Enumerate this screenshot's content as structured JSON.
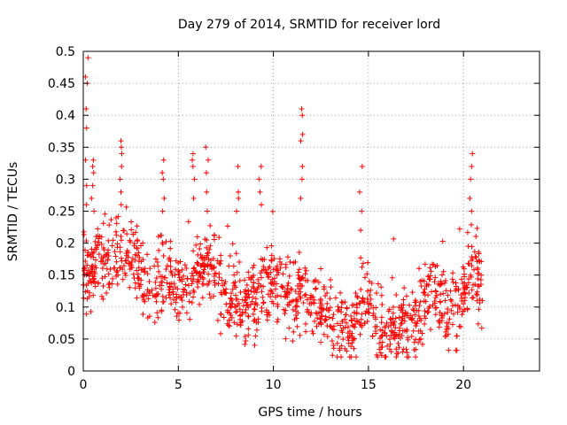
{
  "chart_data": {
    "type": "scatter",
    "title": "Day 279 of 2014, SRMTID for receiver lord",
    "xlabel": "GPS time / hours",
    "ylabel": "SRMTID / TECUs",
    "xlim": [
      0,
      24
    ],
    "ylim": [
      0,
      0.5
    ],
    "xticks": [
      0,
      5,
      10,
      15,
      20
    ],
    "yticks": [
      0,
      0.05,
      0.1,
      0.15,
      0.2,
      0.25,
      0.3,
      0.35,
      0.4,
      0.45,
      0.5
    ],
    "xtick_labels": [
      "0",
      "5",
      "10",
      "15",
      "20"
    ],
    "ytick_labels": [
      "0",
      "0.05",
      "0.1",
      "0.15",
      "0.2",
      "0.25",
      "0.3",
      "0.35",
      "0.4",
      "0.45",
      "0.5"
    ],
    "grid": true,
    "marker": "+",
    "series": [
      {
        "name": "SRMTID",
        "color": "#ff0000",
        "x_range": [
          0,
          21
        ],
        "baseline": [
          [
            0.0,
            0.15
          ],
          [
            0.5,
            0.16
          ],
          [
            1.0,
            0.18
          ],
          [
            1.5,
            0.18
          ],
          [
            2.0,
            0.18
          ],
          [
            2.5,
            0.17
          ],
          [
            3.0,
            0.15
          ],
          [
            3.5,
            0.14
          ],
          [
            4.0,
            0.14
          ],
          [
            4.5,
            0.14
          ],
          [
            5.0,
            0.13
          ],
          [
            5.5,
            0.13
          ],
          [
            6.0,
            0.15
          ],
          [
            6.5,
            0.17
          ],
          [
            7.0,
            0.14
          ],
          [
            7.5,
            0.11
          ],
          [
            8.0,
            0.12
          ],
          [
            8.5,
            0.11
          ],
          [
            9.0,
            0.11
          ],
          [
            9.5,
            0.13
          ],
          [
            10.0,
            0.14
          ],
          [
            10.5,
            0.12
          ],
          [
            11.0,
            0.11
          ],
          [
            11.5,
            0.13
          ],
          [
            12.0,
            0.11
          ],
          [
            12.5,
            0.1
          ],
          [
            13.0,
            0.09
          ],
          [
            13.5,
            0.07
          ],
          [
            14.0,
            0.07
          ],
          [
            14.5,
            0.08
          ],
          [
            15.0,
            0.11
          ],
          [
            15.5,
            0.07
          ],
          [
            16.0,
            0.06
          ],
          [
            16.5,
            0.07
          ],
          [
            17.0,
            0.07
          ],
          [
            17.5,
            0.07
          ],
          [
            18.0,
            0.11
          ],
          [
            18.5,
            0.13
          ],
          [
            19.0,
            0.11
          ],
          [
            19.5,
            0.09
          ],
          [
            20.0,
            0.11
          ],
          [
            20.5,
            0.17
          ],
          [
            21.0,
            0.14
          ]
        ],
        "spread": 0.045,
        "spikes": [
          {
            "x": 0.18,
            "values": [
              0.49,
              0.46,
              0.45,
              0.41,
              0.38,
              0.33,
              0.29,
              0.26
            ]
          },
          {
            "x": 0.5,
            "values": [
              0.33,
              0.32,
              0.31,
              0.29,
              0.27,
              0.25
            ]
          },
          {
            "x": 2.0,
            "values": [
              0.36,
              0.35,
              0.34,
              0.32,
              0.3,
              0.28,
              0.26
            ]
          },
          {
            "x": 4.2,
            "values": [
              0.33,
              0.31,
              0.3,
              0.27,
              0.25
            ]
          },
          {
            "x": 5.8,
            "values": [
              0.34,
              0.33,
              0.32,
              0.3,
              0.27
            ]
          },
          {
            "x": 6.5,
            "values": [
              0.35,
              0.33,
              0.31,
              0.28,
              0.25
            ]
          },
          {
            "x": 8.1,
            "values": [
              0.32,
              0.28,
              0.27,
              0.25
            ]
          },
          {
            "x": 9.3,
            "values": [
              0.32,
              0.3,
              0.28,
              0.26
            ]
          },
          {
            "x": 11.5,
            "values": [
              0.41,
              0.4,
              0.37,
              0.36,
              0.32,
              0.3,
              0.27
            ]
          },
          {
            "x": 14.6,
            "values": [
              0.32,
              0.28,
              0.25,
              0.22
            ]
          },
          {
            "x": 20.4,
            "values": [
              0.34,
              0.32,
              0.3,
              0.27,
              0.25
            ]
          }
        ]
      }
    ]
  }
}
